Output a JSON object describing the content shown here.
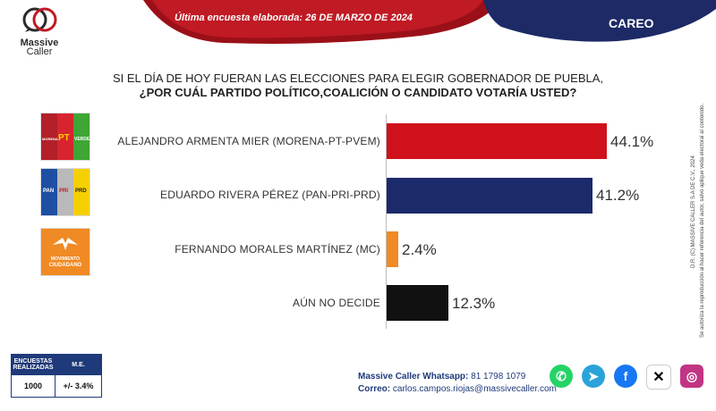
{
  "brand": {
    "name_line1": "Massive",
    "name_line2": "Caller"
  },
  "banner": {
    "survey_date": "Última encuesta elaborada:  26 DE MARZO DE 2024",
    "section": "CAREO"
  },
  "question": {
    "line1": "SI EL DÍA DE HOY FUERAN LAS ELECCIONES PARA ELEGIR GOBERNADOR DE PUEBLA,",
    "line2": "¿POR CUÁL PARTIDO POLÍTICO,COALICIÓN  O CANDIDATO  VOTARÍA USTED?"
  },
  "chart_data": {
    "type": "bar",
    "orientation": "horizontal",
    "categories": [
      "ALEJANDRO ARMENTA MIER (MORENA-PT-PVEM)",
      "EDUARDO RIVERA PÉREZ (PAN-PRI-PRD)",
      "FERNANDO MORALES MARTÍNEZ (MC)",
      "AÚN NO DECIDE"
    ],
    "values": [
      44.1,
      41.2,
      2.4,
      12.3
    ],
    "value_labels": [
      "44.1%",
      "41.2%",
      "2.4%",
      "12.3%"
    ],
    "colors": [
      "#d0111b",
      "#1b2a6b",
      "#f08a24",
      "#111111"
    ],
    "xlim": [
      0,
      48
    ]
  },
  "party_logos": {
    "morena_pt_pvem": {
      "pt": "PT",
      "verde": "VERDE",
      "morena": "MORENA"
    },
    "pan_pri_prd": {
      "pan": "PAN",
      "pri": "PRI",
      "prd": "PRD"
    },
    "mc": {
      "line1": "MOVIMIENTO",
      "line2": "CIUDADANO"
    }
  },
  "stats": {
    "headers": [
      "ENCUESTAS REALIZADAS",
      "M.E."
    ],
    "values": [
      "1000",
      "+/- 3.4%"
    ]
  },
  "contact": {
    "whatsapp_label": "Massive Caller Whatsapp:",
    "whatsapp_value": "81 1798  1079",
    "email_label": "Correo:",
    "email_value": "carlos.campos.riojas@massivecaller.com"
  },
  "copyright": {
    "line1": "D.R. (C) MASSIVE CALLER S.A DE C.V., 2024",
    "line2": "Se autoriza la reproducción al hacer referencia del autor, salvo aplique veda electoral al contenido."
  },
  "social_icons": [
    "whatsapp-icon",
    "telegram-icon",
    "facebook-icon",
    "x-icon",
    "instagram-icon"
  ]
}
